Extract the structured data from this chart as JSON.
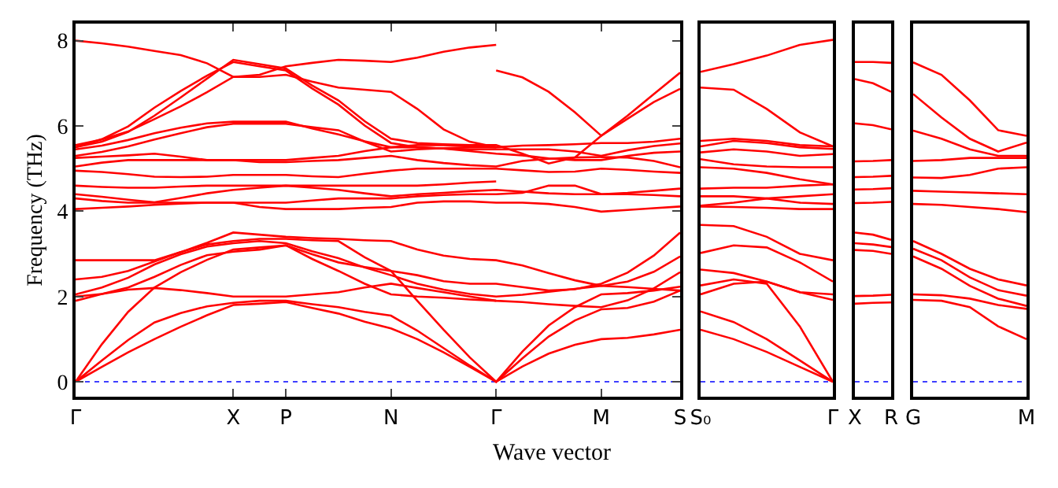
{
  "chart_data": [
    {
      "type": "line",
      "ylabel": "Frequency (THz)",
      "xlabel": "Wave vector",
      "color": "#ff0000",
      "categories": [
        "Γ",
        null,
        null,
        null,
        null,
        null,
        "X",
        null,
        "P",
        null,
        null,
        null,
        "N",
        null,
        null,
        null,
        "Γ",
        null,
        null,
        null,
        "M",
        null,
        null,
        "S"
      ],
      "ylim": [
        -0.35,
        8.4
      ],
      "yticks": [
        0,
        2,
        4,
        6,
        8
      ],
      "grid": false,
      "ref_lines": [
        {
          "axis": "y",
          "value": 0,
          "color": "#0000ff",
          "line_style": "dotted"
        }
      ],
      "series": [
        {
          "values": [
            0,
            0.35,
            0.69,
            1.0,
            1.29,
            1.56,
            1.8,
            1.83,
            1.87,
            1.73,
            1.6,
            1.41,
            1.25,
            1.0,
            0.69,
            0.35,
            0,
            0.36,
            0.66,
            0.87,
            1.0,
            1.03,
            1.11,
            1.22
          ]
        },
        {
          "values": [
            0,
            0.5,
            0.98,
            1.39,
            1.61,
            1.77,
            1.85,
            1.9,
            1.9,
            1.82,
            1.75,
            1.64,
            1.55,
            1.2,
            0.79,
            0.38,
            0,
            0.55,
            1.06,
            1.44,
            1.7,
            1.73,
            1.88,
            2.14
          ]
        },
        {
          "values": [
            0,
            0.88,
            1.64,
            2.21,
            2.57,
            2.86,
            3.1,
            3.15,
            3.2,
            2.99,
            2.8,
            2.69,
            2.6,
            1.9,
            1.22,
            0.57,
            0,
            0.71,
            1.32,
            1.75,
            2.05,
            2.08,
            2.14,
            2.23
          ]
        },
        {
          "values": [
            1.9,
            2.06,
            2.16,
            2.2,
            2.15,
            2.08,
            2.0,
            2.0,
            2.0,
            2.05,
            2.1,
            2.21,
            2.3,
            2.2,
            2.1,
            2.0,
            1.9,
            1.87,
            1.82,
            1.78,
            1.75,
            1.91,
            2.19,
            2.57
          ]
        },
        {
          "values": [
            2.0,
            2.06,
            2.21,
            2.46,
            2.74,
            2.97,
            3.05,
            3.1,
            3.2,
            2.88,
            2.6,
            2.3,
            2.05,
            2.0,
            1.97,
            1.93,
            1.9,
            null,
            null,
            null,
            null,
            null,
            null,
            null
          ]
        },
        {
          "values": [
            2.05,
            2.21,
            2.44,
            2.75,
            2.99,
            3.17,
            3.25,
            3.3,
            3.25,
            3.06,
            2.9,
            2.68,
            2.5,
            2.3,
            2.16,
            2.06,
            2.0,
            2.04,
            2.11,
            2.18,
            2.25,
            2.35,
            2.58,
            2.94
          ]
        },
        {
          "values": [
            2.4,
            2.46,
            2.6,
            2.82,
            3.04,
            3.22,
            3.3,
            3.35,
            3.35,
            3.32,
            3.3,
            2.92,
            2.6,
            2.5,
            2.36,
            2.3,
            2.3,
            2.22,
            2.14,
            2.17,
            2.3,
            2.56,
            2.96,
            3.5
          ]
        },
        {
          "values": [
            2.85,
            2.85,
            2.85,
            2.85,
            3.04,
            3.26,
            3.5,
            3.45,
            3.4,
            3.37,
            3.35,
            3.32,
            3.3,
            3.1,
            2.96,
            2.88,
            2.85,
            2.73,
            2.55,
            2.38,
            2.25,
            2.22,
            2.18,
            2.14
          ]
        },
        {
          "values": [
            4.05,
            4.08,
            4.11,
            4.15,
            4.18,
            4.2,
            4.2,
            4.1,
            4.05,
            4.05,
            4.05,
            4.08,
            4.1,
            4.2,
            4.23,
            4.23,
            4.2,
            4.2,
            4.17,
            4.1,
            3.99,
            4.03,
            4.07,
            4.11
          ]
        },
        {
          "values": [
            4.3,
            4.24,
            4.2,
            4.2,
            4.2,
            4.2,
            4.2,
            4.2,
            4.2,
            4.25,
            4.3,
            4.3,
            4.3,
            4.35,
            4.38,
            4.4,
            4.4,
            4.43,
            4.6,
            4.6,
            4.4,
            4.4,
            4.38,
            4.35
          ]
        },
        {
          "values": [
            4.4,
            4.34,
            4.27,
            4.21,
            4.31,
            4.42,
            4.5,
            4.55,
            4.6,
            4.55,
            4.5,
            4.42,
            4.35,
            4.4,
            4.43,
            4.47,
            4.5,
            4.46,
            4.42,
            4.4,
            4.4,
            4.43,
            4.48,
            4.53
          ]
        },
        {
          "values": [
            4.6,
            4.57,
            4.55,
            4.55,
            4.58,
            4.6,
            4.6,
            4.6,
            4.6,
            4.6,
            4.6,
            4.6,
            4.6,
            4.6,
            4.63,
            4.67,
            4.7,
            null,
            null,
            null,
            null,
            null,
            null,
            null
          ]
        },
        {
          "values": [
            4.95,
            4.92,
            4.87,
            4.81,
            4.8,
            4.81,
            4.85,
            4.85,
            4.85,
            4.82,
            4.8,
            4.88,
            4.95,
            5.0,
            5.0,
            5.0,
            5.0,
            4.96,
            4.92,
            4.93,
            5.0,
            4.97,
            4.93,
            4.9
          ]
        },
        {
          "values": [
            5.05,
            5.14,
            5.2,
            5.2,
            5.2,
            5.2,
            5.2,
            5.15,
            5.15,
            5.18,
            5.2,
            5.25,
            5.3,
            5.2,
            5.13,
            5.08,
            5.05,
            5.18,
            5.23,
            5.26,
            5.27,
            5.26,
            5.18,
            5.03
          ]
        },
        {
          "values": [
            5.25,
            5.28,
            5.31,
            5.35,
            5.28,
            5.2,
            5.2,
            5.2,
            5.2,
            5.25,
            5.3,
            5.41,
            5.5,
            5.5,
            5.47,
            5.41,
            5.35,
            5.31,
            5.24,
            5.2,
            5.2,
            5.3,
            5.37,
            5.4
          ]
        },
        {
          "values": [
            5.3,
            5.39,
            5.52,
            5.68,
            5.83,
            5.97,
            6.05,
            6.05,
            6.05,
            5.97,
            5.9,
            5.63,
            5.4,
            5.45,
            5.48,
            5.5,
            5.5,
            5.54,
            5.55,
            5.57,
            5.6,
            5.6,
            5.63,
            5.7
          ]
        },
        {
          "values": [
            5.45,
            5.54,
            5.67,
            5.83,
            5.96,
            6.06,
            6.1,
            6.1,
            6.1,
            5.94,
            5.8,
            5.64,
            5.5,
            5.55,
            5.55,
            5.53,
            5.5,
            null,
            null,
            null,
            null,
            null,
            null,
            null
          ]
        },
        {
          "values": [
            5.5,
            5.63,
            5.86,
            6.24,
            6.67,
            7.11,
            7.55,
            7.45,
            7.35,
            6.95,
            6.6,
            6.11,
            5.7,
            5.6,
            5.57,
            5.55,
            5.55,
            5.35,
            5.12,
            5.26,
            5.77,
            6.24,
            6.75,
            7.25
          ]
        },
        {
          "values": [
            5.5,
            5.69,
            5.99,
            6.43,
            6.82,
            7.18,
            7.5,
            7.4,
            7.3,
            6.88,
            6.5,
            6.01,
            5.6,
            5.5,
            5.47,
            5.45,
            5.45,
            5.45,
            5.45,
            5.4,
            5.3,
            5.43,
            5.53,
            5.59
          ]
        },
        {
          "values": [
            5.55,
            5.68,
            5.87,
            6.16,
            6.46,
            6.79,
            7.15,
            7.15,
            7.2,
            7.04,
            6.9,
            6.85,
            6.8,
            6.4,
            5.92,
            5.63,
            5.5,
            null,
            null,
            null,
            null,
            null,
            null,
            null
          ]
        },
        {
          "values": [
            8.0,
            7.94,
            7.86,
            7.76,
            7.66,
            7.47,
            7.15,
            7.2,
            7.4,
            7.48,
            7.55,
            7.53,
            7.5,
            7.6,
            7.74,
            7.84,
            7.9,
            null,
            null,
            null,
            null,
            null,
            null,
            null
          ]
        },
        {
          "values": [
            null,
            null,
            null,
            null,
            null,
            null,
            null,
            null,
            null,
            null,
            null,
            null,
            null,
            null,
            null,
            null,
            7.3,
            7.14,
            6.8,
            6.32,
            5.77,
            6.17,
            6.56,
            6.87
          ]
        }
      ]
    },
    {
      "type": "line",
      "color": "#ff0000",
      "categories": [
        "S₀",
        null,
        null,
        null,
        "Γ"
      ],
      "ylim": [
        -0.35,
        8.4
      ],
      "tick_labels": "x",
      "grid": false,
      "ref_lines": [
        {
          "axis": "y",
          "value": 0,
          "color": "#0000ff",
          "line_style": "dotted"
        }
      ],
      "series": [
        {
          "values": [
            1.22,
            1.0,
            0.7,
            0.35,
            0
          ]
        },
        {
          "values": [
            1.65,
            1.4,
            1.0,
            0.5,
            0
          ]
        },
        {
          "values": [
            2.26,
            2.4,
            2.3,
            1.3,
            0
          ]
        },
        {
          "values": [
            2.05,
            2.3,
            2.35,
            2.1,
            1.92
          ]
        },
        {
          "values": [
            2.63,
            2.55,
            2.35,
            2.1,
            2.05
          ]
        },
        {
          "values": [
            3.02,
            3.2,
            3.15,
            2.8,
            2.35
          ]
        },
        {
          "values": [
            3.68,
            3.65,
            3.4,
            3.0,
            2.85
          ]
        },
        {
          "values": [
            4.11,
            4.1,
            4.08,
            4.05,
            4.05
          ]
        },
        {
          "values": [
            4.13,
            4.2,
            4.3,
            4.35,
            4.4
          ]
        },
        {
          "values": [
            4.35,
            4.35,
            4.3,
            4.2,
            4.17
          ]
        },
        {
          "values": [
            4.53,
            4.55,
            4.55,
            4.6,
            4.63
          ]
        },
        {
          "values": [
            5.03,
            5.0,
            4.9,
            4.75,
            4.63
          ]
        },
        {
          "values": [
            5.22,
            5.1,
            5.05,
            5.03,
            5.03
          ]
        },
        {
          "values": [
            5.38,
            5.45,
            5.4,
            5.3,
            5.34
          ]
        },
        {
          "values": [
            5.52,
            5.65,
            5.6,
            5.5,
            5.46
          ]
        },
        {
          "values": [
            5.65,
            5.7,
            5.65,
            5.55,
            5.52
          ]
        },
        {
          "values": [
            6.9,
            6.85,
            6.4,
            5.85,
            5.52
          ]
        },
        {
          "values": [
            7.27,
            7.45,
            7.65,
            7.9,
            8.02
          ]
        }
      ]
    },
    {
      "type": "line",
      "color": "#ff0000",
      "categories": [
        "X",
        null,
        "R"
      ],
      "ylim": [
        -0.35,
        8.4
      ],
      "tick_labels": "x",
      "grid": false,
      "ref_lines": [
        {
          "axis": "y",
          "value": 0,
          "color": "#0000ff",
          "line_style": "dotted"
        }
      ],
      "series": [
        {
          "values": [
            7.5,
            7.5,
            7.48
          ]
        },
        {
          "values": [
            7.1,
            7.0,
            6.8
          ]
        },
        {
          "values": [
            6.06,
            6.02,
            5.92
          ]
        },
        {
          "values": [
            5.17,
            5.18,
            5.2
          ]
        },
        {
          "values": [
            4.8,
            4.81,
            4.83
          ]
        },
        {
          "values": [
            4.51,
            4.52,
            4.54
          ]
        },
        {
          "values": [
            4.19,
            4.2,
            4.22
          ]
        },
        {
          "values": [
            3.5,
            3.45,
            3.33
          ]
        },
        {
          "values": [
            3.25,
            3.22,
            3.16
          ]
        },
        {
          "values": [
            3.09,
            3.07,
            3.0
          ]
        },
        {
          "values": [
            2.01,
            2.02,
            2.04
          ]
        },
        {
          "values": [
            1.83,
            1.85,
            1.86
          ]
        }
      ]
    },
    {
      "type": "line",
      "color": "#ff0000",
      "categories": [
        "G",
        null,
        null,
        null,
        "M"
      ],
      "ylim": [
        -0.35,
        8.4
      ],
      "tick_labels": "x",
      "grid": false,
      "ref_lines": [
        {
          "axis": "y",
          "value": 0,
          "color": "#0000ff",
          "line_style": "dotted"
        }
      ],
      "series": [
        {
          "values": [
            7.49,
            7.2,
            6.6,
            5.9,
            5.77
          ]
        },
        {
          "values": [
            6.75,
            6.2,
            5.7,
            5.4,
            5.61
          ]
        },
        {
          "values": [
            5.89,
            5.7,
            5.45,
            5.3,
            5.3
          ]
        },
        {
          "values": [
            5.18,
            5.2,
            5.25,
            5.25,
            5.25
          ]
        },
        {
          "values": [
            4.79,
            4.78,
            4.85,
            5.0,
            5.03
          ]
        },
        {
          "values": [
            4.48,
            4.46,
            4.44,
            4.42,
            4.4
          ]
        },
        {
          "values": [
            4.17,
            4.15,
            4.1,
            4.05,
            3.98
          ]
        },
        {
          "values": [
            3.3,
            3.0,
            2.65,
            2.4,
            2.26
          ]
        },
        {
          "values": [
            3.12,
            2.85,
            2.45,
            2.15,
            2.02
          ]
        },
        {
          "values": [
            2.94,
            2.65,
            2.25,
            1.95,
            1.78
          ]
        },
        {
          "values": [
            2.05,
            2.03,
            1.95,
            1.8,
            1.71
          ]
        },
        {
          "values": [
            1.92,
            1.9,
            1.75,
            1.3,
            1.0
          ]
        }
      ]
    }
  ]
}
